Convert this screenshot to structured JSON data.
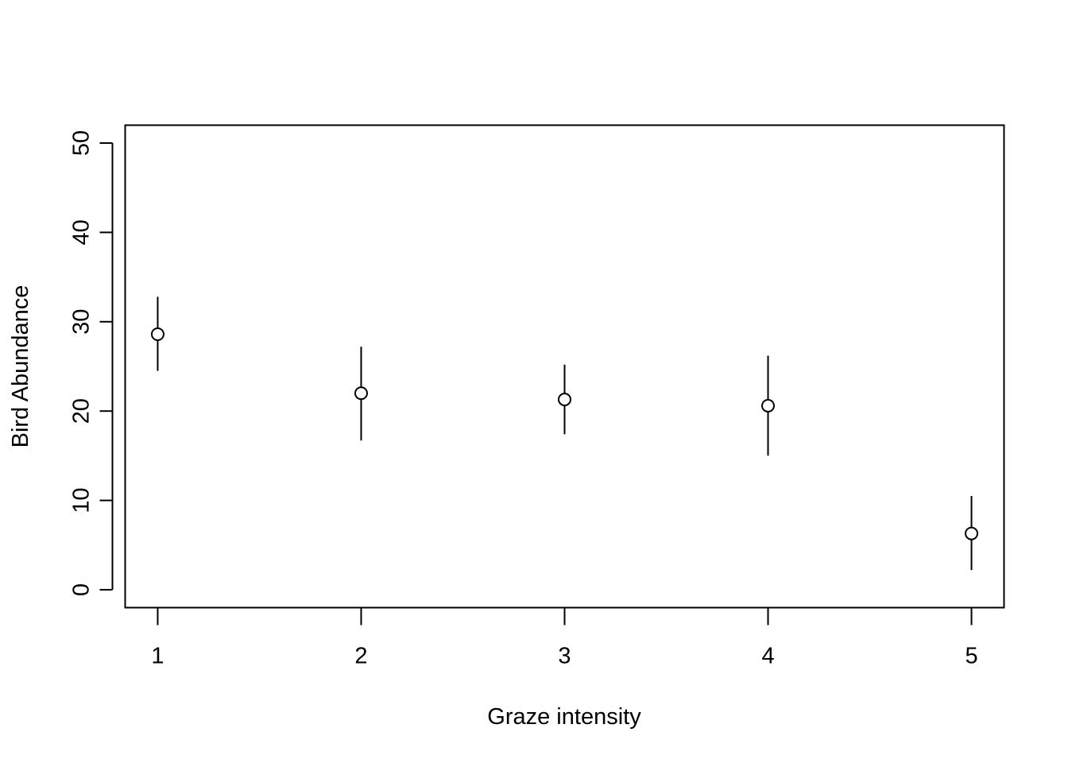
{
  "chart_data": {
    "type": "scatter",
    "title": "",
    "xlabel": "Graze intensity",
    "ylabel": "Bird Abundance",
    "x": [
      1,
      2,
      3,
      4,
      5
    ],
    "y": [
      28.6,
      22.0,
      21.3,
      20.6,
      6.3
    ],
    "error_low": [
      24.5,
      16.7,
      17.4,
      15.0,
      2.2
    ],
    "error_high": [
      32.8,
      27.2,
      25.2,
      26.2,
      10.5
    ],
    "xlim": [
      0.84,
      5.16
    ],
    "ylim": [
      -2.0,
      52.0
    ],
    "x_ticks": [
      1,
      2,
      3,
      4,
      5
    ],
    "x_tick_labels": [
      "1",
      "2",
      "3",
      "4",
      "5"
    ],
    "y_ticks": [
      0,
      10,
      20,
      30,
      40,
      50
    ],
    "y_tick_labels": [
      "0",
      "10",
      "20",
      "30",
      "40",
      "50"
    ],
    "marker": "open-circle",
    "grid": false,
    "legend": "none",
    "color": "#000000"
  }
}
